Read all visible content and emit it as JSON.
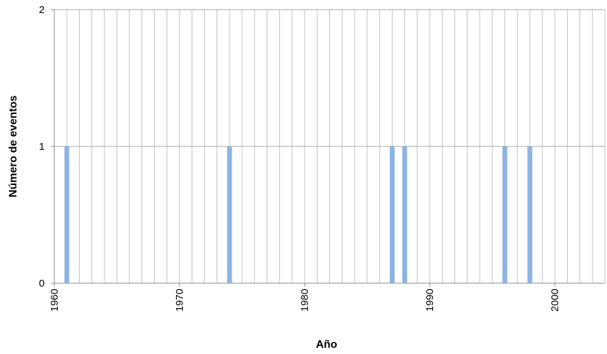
{
  "chart_data": {
    "type": "bar",
    "x_label": "Año",
    "y_label": "Número de eventos",
    "x": [
      1961,
      1974,
      1987,
      1988,
      1996,
      1998
    ],
    "values": [
      1,
      1,
      1,
      1,
      1,
      1
    ],
    "color": "#8db3e2",
    "xlim": [
      1960,
      2004
    ],
    "xticks": [
      1960,
      1970,
      1980,
      1990,
      2000
    ],
    "x_minor_grid_step": 1,
    "ylim": [
      0,
      2
    ],
    "yticks": [
      0,
      1,
      2
    ],
    "grid": true
  }
}
